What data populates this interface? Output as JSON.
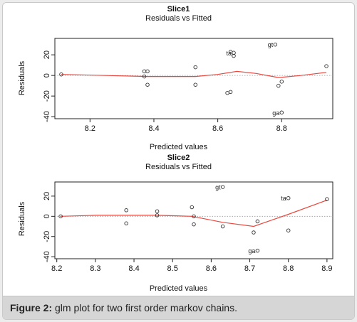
{
  "figure": {
    "caption_label": "Figure 2:",
    "caption_text": "glm plot for two first order markov chains."
  },
  "colors": {
    "smooth": "#e8483f",
    "reference": "#9a9a9a",
    "points": "#333333"
  },
  "chart_data": [
    {
      "type": "scatter",
      "title": "Slice1",
      "subtitle": "Residuals vs Fitted",
      "xlabel": "Predicted values",
      "ylabel": "Residuals",
      "xlim": [
        8.09,
        8.96
      ],
      "ylim": [
        -42,
        36
      ],
      "xticks": [
        8.2,
        8.4,
        8.6,
        8.8
      ],
      "yticks": [
        -40,
        -20,
        0,
        20
      ],
      "reference_line": 0,
      "points": [
        {
          "x": 8.11,
          "y": 1
        },
        {
          "x": 8.37,
          "y": 4
        },
        {
          "x": 8.38,
          "y": 4
        },
        {
          "x": 8.37,
          "y": -1
        },
        {
          "x": 8.38,
          "y": -9
        },
        {
          "x": 8.53,
          "y": 8
        },
        {
          "x": 8.53,
          "y": -9
        },
        {
          "x": 8.63,
          "y": -17
        },
        {
          "x": 8.64,
          "y": -16
        },
        {
          "x": 8.64,
          "y": 23,
          "label": ""
        },
        {
          "x": 8.65,
          "y": 22,
          "label": "ta"
        },
        {
          "x": 8.65,
          "y": 19
        },
        {
          "x": 8.78,
          "y": 30,
          "label": "gt"
        },
        {
          "x": 8.79,
          "y": -10
        },
        {
          "x": 8.8,
          "y": -6
        },
        {
          "x": 8.8,
          "y": -36,
          "label": "ga"
        },
        {
          "x": 8.94,
          "y": 9
        }
      ],
      "smooth": {
        "x": [
          8.11,
          8.25,
          8.38,
          8.53,
          8.6,
          8.66,
          8.72,
          8.79,
          8.86,
          8.94
        ],
        "y": [
          1,
          0,
          -1,
          -1,
          1,
          4,
          2,
          -2,
          0,
          3
        ]
      }
    },
    {
      "type": "scatter",
      "title": "Slice2",
      "subtitle": "Residuals vs Fitted",
      "xlabel": "Predicted values",
      "ylabel": "Residuals",
      "xlim": [
        8.195,
        8.915
      ],
      "ylim": [
        -42,
        34
      ],
      "xticks": [
        8.2,
        8.3,
        8.4,
        8.5,
        8.6,
        8.7,
        8.8,
        8.9
      ],
      "yticks": [
        -40,
        -20,
        0,
        20
      ],
      "reference_line": 0,
      "points": [
        {
          "x": 8.21,
          "y": 0
        },
        {
          "x": 8.38,
          "y": 6
        },
        {
          "x": 8.38,
          "y": -7
        },
        {
          "x": 8.46,
          "y": 5
        },
        {
          "x": 8.46,
          "y": 1
        },
        {
          "x": 8.55,
          "y": 9
        },
        {
          "x": 8.555,
          "y": 0
        },
        {
          "x": 8.555,
          "y": -8
        },
        {
          "x": 8.63,
          "y": 29,
          "label": "gt"
        },
        {
          "x": 8.63,
          "y": -10
        },
        {
          "x": 8.71,
          "y": -16
        },
        {
          "x": 8.72,
          "y": -5
        },
        {
          "x": 8.72,
          "y": -34,
          "label": "ga"
        },
        {
          "x": 8.8,
          "y": 18,
          "label": "ta"
        },
        {
          "x": 8.8,
          "y": -14
        },
        {
          "x": 8.9,
          "y": 17
        }
      ],
      "smooth": {
        "x": [
          8.21,
          8.3,
          8.38,
          8.46,
          8.55,
          8.63,
          8.71,
          8.8,
          8.9
        ],
        "y": [
          0,
          1,
          1,
          1,
          0,
          -6,
          -10,
          2,
          16
        ]
      }
    }
  ]
}
